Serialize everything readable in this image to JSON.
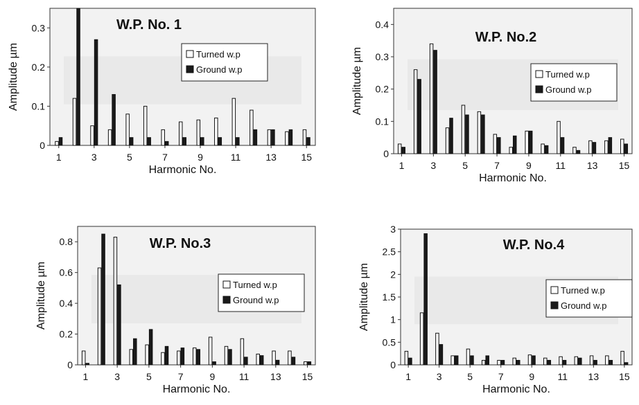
{
  "chart_data": [
    {
      "type": "bar",
      "title": "W.P. No. 1",
      "xlabel": "Harmonic No.",
      "ylabel": "Amplitude µm",
      "x": [
        1,
        2,
        3,
        4,
        5,
        6,
        7,
        8,
        9,
        10,
        11,
        12,
        13,
        14,
        15
      ],
      "xticks": [
        "1",
        "3",
        "5",
        "7",
        "9",
        "11",
        "13",
        "15"
      ],
      "yticks": [
        "0",
        "0.1",
        "0.2",
        "0.3"
      ],
      "ylim": [
        0,
        0.35
      ],
      "legend": "center-right",
      "series": [
        {
          "name": "Turned w.p",
          "color": "#ffffff",
          "values": [
            0.01,
            0.12,
            0.05,
            0.04,
            0.08,
            0.1,
            0.04,
            0.06,
            0.065,
            0.07,
            0.12,
            0.09,
            0.04,
            0.035,
            0.04
          ]
        },
        {
          "name": "Ground w.p",
          "color": "#1a1a1a",
          "values": [
            0.02,
            0.35,
            0.27,
            0.13,
            0.02,
            0.02,
            0.01,
            0.02,
            0.02,
            0.02,
            0.02,
            0.04,
            0.04,
            0.04,
            0.02
          ]
        }
      ]
    },
    {
      "type": "bar",
      "title": "W.P. No.2",
      "xlabel": "Harmonic No.",
      "ylabel": "Amplitude µm",
      "x": [
        1,
        2,
        3,
        4,
        5,
        6,
        7,
        8,
        9,
        10,
        11,
        12,
        13,
        14,
        15
      ],
      "xticks": [
        "1",
        "3",
        "5",
        "7",
        "9",
        "11",
        "13",
        "15"
      ],
      "yticks": [
        "0",
        "0.1",
        "0.2",
        "0.3",
        "0.4"
      ],
      "ylim": [
        0,
        0.45
      ],
      "legend": "center-right",
      "series": [
        {
          "name": "Turned w.p",
          "color": "#ffffff",
          "values": [
            0.03,
            0.26,
            0.34,
            0.08,
            0.15,
            0.13,
            0.06,
            0.02,
            0.07,
            0.03,
            0.1,
            0.02,
            0.04,
            0.04,
            0.045
          ]
        },
        {
          "name": "Ground w.p",
          "color": "#1a1a1a",
          "values": [
            0.02,
            0.23,
            0.32,
            0.11,
            0.12,
            0.12,
            0.05,
            0.055,
            0.07,
            0.025,
            0.05,
            0.01,
            0.035,
            0.05,
            0.03
          ]
        }
      ]
    },
    {
      "type": "bar",
      "title": "W.P. No.3",
      "xlabel": "Harmonic No.",
      "ylabel": "Amplitude µm",
      "x": [
        1,
        2,
        3,
        4,
        5,
        6,
        7,
        8,
        9,
        10,
        11,
        12,
        13,
        14,
        15
      ],
      "xticks": [
        "1",
        "3",
        "5",
        "7",
        "9",
        "11",
        "13",
        "15"
      ],
      "yticks": [
        "0",
        "0.2",
        "0.4",
        "0.6",
        "0.8"
      ],
      "ylim": [
        0,
        0.9
      ],
      "legend": "center-right",
      "series": [
        {
          "name": "Turned w.p",
          "color": "#ffffff",
          "values": [
            0.09,
            0.63,
            0.83,
            0.1,
            0.13,
            0.08,
            0.09,
            0.11,
            0.18,
            0.12,
            0.17,
            0.07,
            0.09,
            0.09,
            0.02
          ]
        },
        {
          "name": "Ground w.p",
          "color": "#1a1a1a",
          "values": [
            0.01,
            0.85,
            0.52,
            0.17,
            0.23,
            0.12,
            0.11,
            0.1,
            0.02,
            0.1,
            0.05,
            0.06,
            0.03,
            0.05,
            0.02
          ]
        }
      ]
    },
    {
      "type": "bar",
      "title": "W.P. No.4",
      "xlabel": "Harmonic No.",
      "ylabel": "Amplitude µm",
      "x": [
        1,
        2,
        3,
        4,
        5,
        6,
        7,
        8,
        9,
        10,
        11,
        12,
        13,
        14,
        15
      ],
      "xticks": [
        "1",
        "3",
        "5",
        "7",
        "9",
        "11",
        "13",
        "15"
      ],
      "yticks": [
        "0",
        "0.5",
        "1",
        "1.5",
        "2",
        "2.5",
        "3"
      ],
      "ylim": [
        0,
        3
      ],
      "legend": "center-right",
      "series": [
        {
          "name": "Turned w.p",
          "color": "#ffffff",
          "values": [
            0.3,
            1.15,
            0.7,
            0.2,
            0.35,
            0.1,
            0.1,
            0.15,
            0.22,
            0.15,
            0.18,
            0.18,
            0.2,
            0.2,
            0.3
          ]
        },
        {
          "name": "Ground w.p",
          "color": "#1a1a1a",
          "values": [
            0.15,
            2.9,
            0.45,
            0.2,
            0.2,
            0.2,
            0.1,
            0.1,
            0.2,
            0.1,
            0.1,
            0.15,
            0.1,
            0.1,
            0.05
          ]
        }
      ]
    }
  ]
}
